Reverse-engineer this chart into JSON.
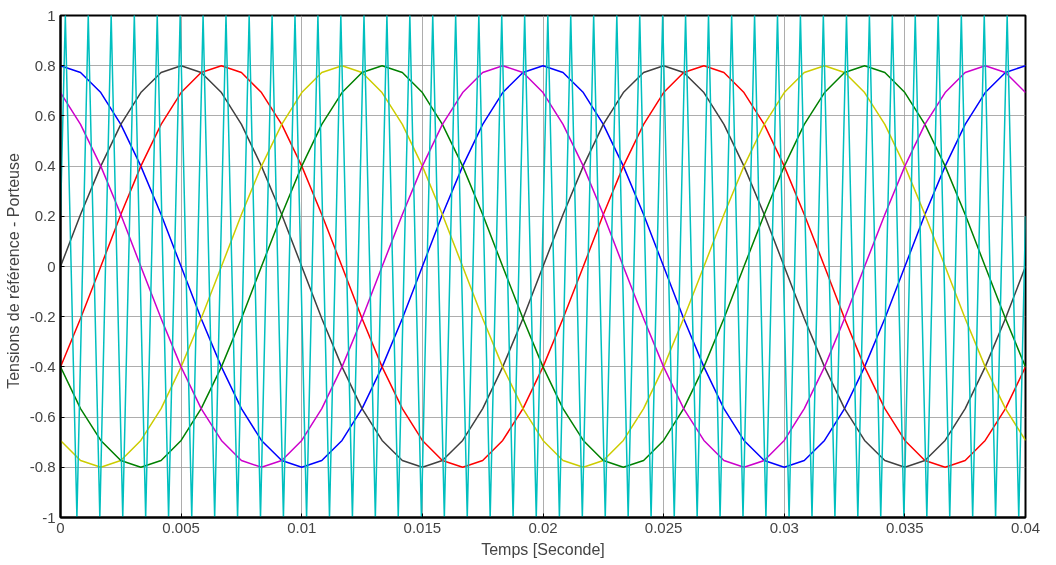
{
  "chart_data": {
    "type": "line",
    "xlabel": "Temps [Seconde]",
    "ylabel": "Tensions de référence  -  Porteuse",
    "x": [
      0,
      0.00083,
      0.00167,
      0.0025,
      0.00333,
      0.00417,
      0.005,
      0.00583,
      0.00667,
      0.0075,
      0.00833,
      0.00917,
      0.01,
      0.01083,
      0.01167,
      0.0125,
      0.01333,
      0.01417,
      0.015,
      0.01583,
      0.01667,
      0.0175,
      0.01833,
      0.01917,
      0.02,
      0.02083,
      0.02167,
      0.0225,
      0.02333,
      0.02417,
      0.025,
      0.02583,
      0.02667,
      0.0275,
      0.02833,
      0.02917,
      0.03,
      0.03083,
      0.03167,
      0.0325,
      0.03333,
      0.03417,
      0.035,
      0.03583,
      0.03667,
      0.0375,
      0.03833,
      0.03917,
      0.04
    ],
    "series": [
      {
        "color": "#0000ff",
        "values": [
          0.8,
          0.773,
          0.693,
          0.566,
          0.4,
          0.207,
          0,
          -0.207,
          -0.4,
          -0.566,
          -0.693,
          -0.773,
          -0.8,
          -0.773,
          -0.693,
          -0.566,
          -0.4,
          -0.207,
          0,
          0.207,
          0.4,
          0.566,
          0.693,
          0.773,
          0.8,
          0.773,
          0.693,
          0.566,
          0.4,
          0.207,
          0,
          -0.207,
          -0.4,
          -0.566,
          -0.693,
          -0.773,
          -0.8,
          -0.773,
          -0.693,
          -0.566,
          -0.4,
          -0.207,
          0,
          0.207,
          0.4,
          0.566,
          0.693,
          0.773,
          0.8
        ]
      },
      {
        "color": "#404040",
        "values": [
          0,
          0.207,
          0.4,
          0.566,
          0.693,
          0.773,
          0.8,
          0.773,
          0.693,
          0.566,
          0.4,
          0.207,
          0,
          -0.207,
          -0.4,
          -0.566,
          -0.693,
          -0.773,
          -0.8,
          -0.773,
          -0.693,
          -0.566,
          -0.4,
          -0.207,
          0,
          0.207,
          0.4,
          0.566,
          0.693,
          0.773,
          0.8,
          0.773,
          0.693,
          0.566,
          0.4,
          0.207,
          0,
          -0.207,
          -0.4,
          -0.566,
          -0.693,
          -0.773,
          -0.8,
          -0.773,
          -0.693,
          -0.566,
          -0.4,
          -0.207,
          0
        ]
      },
      {
        "color": "#ff0000",
        "values": [
          -0.4,
          -0.207,
          0,
          0.207,
          0.4,
          0.566,
          0.693,
          0.773,
          0.8,
          0.773,
          0.693,
          0.566,
          0.4,
          0.207,
          0,
          -0.207,
          -0.4,
          -0.566,
          -0.693,
          -0.773,
          -0.8,
          -0.773,
          -0.693,
          -0.566,
          -0.4,
          -0.207,
          0,
          0.207,
          0.4,
          0.566,
          0.693,
          0.773,
          0.8,
          0.773,
          0.693,
          0.566,
          0.4,
          0.207,
          0,
          -0.207,
          -0.4,
          -0.566,
          -0.693,
          -0.773,
          -0.8,
          -0.773,
          -0.693,
          -0.566,
          -0.4
        ]
      },
      {
        "color": "#cccc00",
        "values": [
          -0.693,
          -0.773,
          -0.8,
          -0.773,
          -0.693,
          -0.566,
          -0.4,
          -0.207,
          0,
          0.207,
          0.4,
          0.566,
          0.693,
          0.773,
          0.8,
          0.773,
          0.693,
          0.566,
          0.4,
          0.207,
          0,
          -0.207,
          -0.4,
          -0.566,
          -0.693,
          -0.773,
          -0.8,
          -0.773,
          -0.693,
          -0.566,
          -0.4,
          -0.207,
          0,
          0.207,
          0.4,
          0.566,
          0.693,
          0.773,
          0.8,
          0.773,
          0.693,
          0.566,
          0.4,
          0.207,
          0,
          -0.207,
          -0.4,
          -0.566,
          -0.693
        ]
      },
      {
        "color": "#008000",
        "values": [
          -0.4,
          -0.566,
          -0.693,
          -0.773,
          -0.8,
          -0.773,
          -0.693,
          -0.566,
          -0.4,
          -0.207,
          0,
          0.207,
          0.4,
          0.566,
          0.693,
          0.773,
          0.8,
          0.773,
          0.693,
          0.566,
          0.4,
          0.207,
          0,
          -0.207,
          -0.4,
          -0.566,
          -0.693,
          -0.773,
          -0.8,
          -0.773,
          -0.693,
          -0.566,
          -0.4,
          -0.207,
          0,
          0.207,
          0.4,
          0.566,
          0.693,
          0.773,
          0.8,
          0.773,
          0.693,
          0.566,
          0.4,
          0.207,
          0,
          -0.207,
          -0.4
        ]
      },
      {
        "color": "#cc00cc",
        "values": [
          0.693,
          0.566,
          0.4,
          0.207,
          0,
          -0.207,
          -0.4,
          -0.566,
          -0.693,
          -0.773,
          -0.8,
          -0.773,
          -0.693,
          -0.566,
          -0.4,
          -0.207,
          0,
          0.207,
          0.4,
          0.566,
          0.693,
          0.773,
          0.8,
          0.773,
          0.693,
          0.566,
          0.4,
          0.207,
          0,
          -0.207,
          -0.4,
          -0.566,
          -0.693,
          -0.773,
          -0.8,
          -0.773,
          -0.693,
          -0.566,
          -0.4,
          -0.207,
          0,
          0.207,
          0.4,
          0.566,
          0.693,
          0.773,
          0.8,
          0.773,
          0.693
        ]
      },
      {
        "color": "#00bfbf",
        "x": [
          0,
          0.0002,
          0.00068,
          0.00115,
          0.00163,
          0.0021,
          0.00258,
          0.00306,
          0.00353,
          0.00401,
          0.00448,
          0.00496,
          0.00544,
          0.00591,
          0.00639,
          0.00686,
          0.00734,
          0.00782,
          0.00829,
          0.00877,
          0.00924,
          0.00972,
          0.0102,
          0.01067,
          0.01115,
          0.01162,
          0.0121,
          0.01258,
          0.01305,
          0.01353,
          0.014,
          0.01448,
          0.01496,
          0.01543,
          0.01591,
          0.01638,
          0.01686,
          0.01734,
          0.01781,
          0.01829,
          0.01876,
          0.01924,
          0.01972,
          0.0202,
          0.02068,
          0.02115,
          0.02163,
          0.0221,
          0.02258,
          0.02306,
          0.02353,
          0.02401,
          0.02448,
          0.02496,
          0.02544,
          0.02591,
          0.02639,
          0.02686,
          0.02734,
          0.02782,
          0.02829,
          0.02877,
          0.02924,
          0.02972,
          0.0302,
          0.03067,
          0.03115,
          0.03162,
          0.0321,
          0.03258,
          0.03305,
          0.03353,
          0.034,
          0.03448,
          0.03496,
          0.03543,
          0.03591,
          0.03638,
          0.03686,
          0.03734,
          0.03781,
          0.03829,
          0.03876,
          0.03924,
          0.03972,
          0.04
        ],
        "values": [
          0.2,
          1,
          -1,
          1,
          -1,
          1,
          -1,
          1,
          -1,
          1,
          -1,
          1,
          -1,
          1,
          -1,
          1,
          -1,
          1,
          -1,
          1,
          -1,
          1,
          -1,
          1,
          -1,
          1,
          -1,
          1,
          -1,
          1,
          -1,
          1,
          -1,
          1,
          -1,
          1,
          -1,
          1,
          -1,
          1,
          -1,
          1,
          -1,
          1,
          -1,
          1,
          -1,
          1,
          -1,
          1,
          -1,
          1,
          -1,
          1,
          -1,
          1,
          -1,
          1,
          -1,
          1,
          -1,
          1,
          -1,
          1,
          -1,
          1,
          -1,
          1,
          -1,
          1,
          -1,
          1,
          -1,
          1,
          -1,
          1,
          -1,
          1,
          -1,
          1,
          -1,
          1,
          -1,
          1,
          -1,
          0.2
        ]
      }
    ],
    "xlim": [
      0,
      0.04
    ],
    "ylim": [
      -1,
      1
    ],
    "xticks": [
      0,
      0.005,
      0.01,
      0.015,
      0.02,
      0.025,
      0.03,
      0.035,
      0.04
    ],
    "yticks": [
      -1,
      -0.8,
      -0.6,
      -0.4,
      -0.2,
      0,
      0.2,
      0.4,
      0.6,
      0.8,
      1
    ],
    "grid": true,
    "marker": "none",
    "line_style": "solid"
  }
}
